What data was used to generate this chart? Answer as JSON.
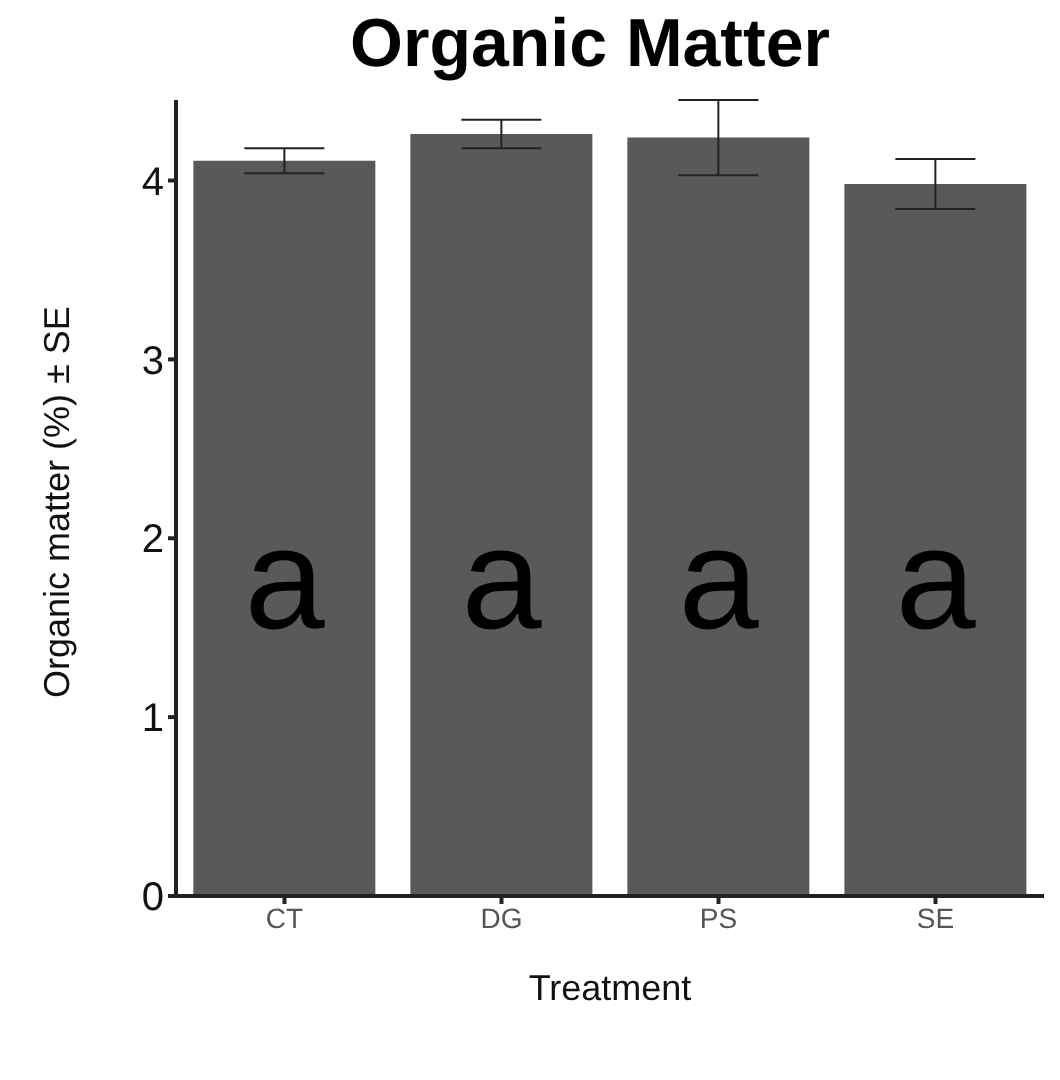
{
  "chart_data": {
    "type": "bar",
    "title": "Organic Matter",
    "xlabel": "Treatment",
    "ylabel": "Organic matter (%) ± SE",
    "categories": [
      "CT",
      "DG",
      "PS",
      "SE"
    ],
    "values": [
      4.11,
      4.26,
      4.24,
      3.98
    ],
    "errors": [
      0.07,
      0.08,
      0.21,
      0.14
    ],
    "color": "#595959",
    "ylim": [
      0,
      4.45
    ],
    "yticks": [
      0,
      1,
      2,
      3,
      4
    ],
    "grid": false,
    "annotations": [
      "a",
      "a",
      "a",
      "a"
    ]
  }
}
